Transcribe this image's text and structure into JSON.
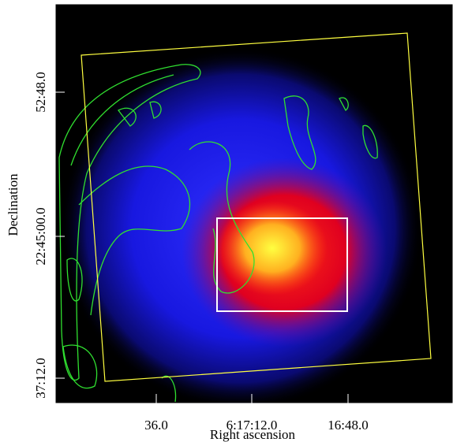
{
  "axes": {
    "x_label": "Right ascension",
    "y_label": "Declination",
    "x_ticks": [
      "36.0",
      "6:17:12.0",
      "16:48.0"
    ],
    "y_ticks": [
      "52:48.0",
      "22:45:00.0",
      "37:12.0"
    ]
  }
}
